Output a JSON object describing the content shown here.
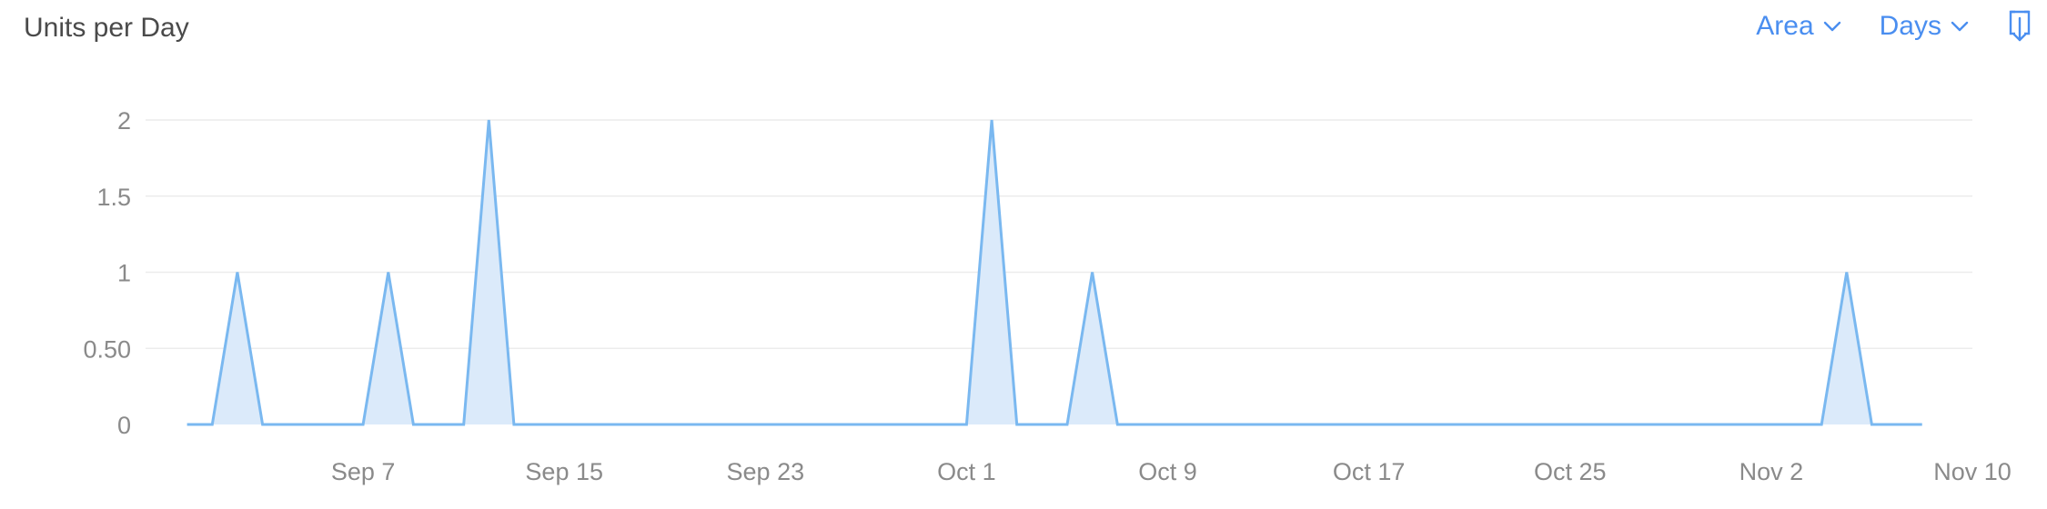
{
  "header": {
    "title": "Units per Day",
    "chart_type_label": "Area",
    "granularity_label": "Days",
    "icons": {
      "chart_type": "chevron-down-icon",
      "granularity": "chevron-down-icon",
      "export": "download-icon"
    }
  },
  "colors": {
    "accent": "#4a8ef0",
    "line": "#7ab8f0",
    "fill": "#dbeafa",
    "grid": "#ececec"
  },
  "chart_data": {
    "type": "area",
    "title": "Units per Day",
    "xlabel": "",
    "ylabel": "",
    "x_start": "Aug 30",
    "x_tick_labels": [
      "Sep 7",
      "Sep 15",
      "Sep 23",
      "Oct 1",
      "Oct 9",
      "Oct 17",
      "Oct 25",
      "Nov 2",
      "Nov 10"
    ],
    "x_tick_days": [
      8,
      16,
      24,
      32,
      40,
      48,
      56,
      64,
      72
    ],
    "x_range": [
      0,
      72
    ],
    "y_ticks": [
      0,
      0.5,
      1,
      1.5,
      2
    ],
    "y_tick_labels": [
      "0",
      "0.50",
      "1",
      "1.5",
      "2"
    ],
    "ylim": [
      0,
      2
    ],
    "grid": true,
    "legend": "none",
    "series": [
      {
        "x": [
          1,
          2,
          3,
          4,
          5,
          6,
          7,
          8,
          9,
          10,
          11,
          12,
          13,
          14,
          15,
          16,
          17,
          18,
          19,
          20,
          21,
          22,
          23,
          24,
          25,
          26,
          27,
          28,
          29,
          30,
          31,
          32,
          33,
          34,
          35,
          36,
          37,
          38,
          39,
          40,
          41,
          42,
          43,
          44,
          45,
          46,
          47,
          48,
          49,
          50,
          51,
          52,
          53,
          54,
          55,
          56,
          57,
          58,
          59,
          60,
          61,
          62,
          63,
          64,
          65,
          66,
          67,
          68,
          69,
          70
        ],
        "values": [
          0,
          0,
          1,
          0,
          0,
          0,
          0,
          0,
          1,
          0,
          0,
          0,
          2,
          0,
          0,
          0,
          0,
          0,
          0,
          0,
          0,
          0,
          0,
          0,
          0,
          0,
          0,
          0,
          0,
          0,
          0,
          0,
          2,
          0,
          0,
          0,
          1,
          0,
          0,
          0,
          0,
          0,
          0,
          0,
          0,
          0,
          0,
          0,
          0,
          0,
          0,
          0,
          0,
          0,
          0,
          0,
          0,
          0,
          0,
          0,
          0,
          0,
          0,
          0,
          0,
          0,
          1,
          0,
          0,
          0
        ]
      }
    ]
  }
}
